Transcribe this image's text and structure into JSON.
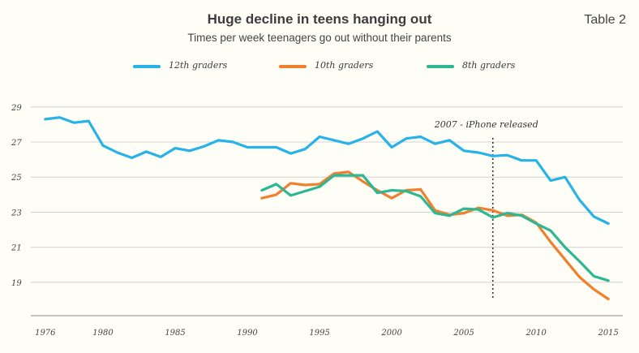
{
  "table_label": "Table 2",
  "chart_data": {
    "type": "line",
    "title": "Huge decline in teens hanging out",
    "subtitle": "Times per week teenagers go out without their parents",
    "xlabel": "",
    "ylabel": "",
    "xlim": [
      1975,
      2016
    ],
    "ylim": [
      17.1,
      30.1
    ],
    "x_ticks": [
      1976,
      1980,
      1985,
      1990,
      1995,
      2000,
      2005,
      2010,
      2015
    ],
    "y_ticks": [
      19,
      21,
      23,
      25,
      27,
      29
    ],
    "x_tick_labels": [
      "1976",
      "1980",
      "1985",
      "1990",
      "1995",
      "2000",
      "2005",
      "2010",
      "2015"
    ],
    "y_tick_labels": [
      "19",
      "21",
      "23",
      "25",
      "27",
      "29"
    ],
    "grid": "horizontal",
    "legend_position": "top",
    "annotation": {
      "x": 2007,
      "label": "2007 - iPhone released"
    },
    "series": [
      {
        "name": "12th graders",
        "color": "#27b2e8",
        "points": [
          [
            1976,
            28.3
          ],
          [
            1977,
            28.4
          ],
          [
            1978,
            28.1
          ],
          [
            1979,
            28.2
          ],
          [
            1980,
            26.8
          ],
          [
            1981,
            26.4
          ],
          [
            1982,
            26.1
          ],
          [
            1983,
            26.45
          ],
          [
            1984,
            26.15
          ],
          [
            1985,
            26.65
          ],
          [
            1986,
            26.5
          ],
          [
            1987,
            26.75
          ],
          [
            1988,
            27.1
          ],
          [
            1989,
            27.0
          ],
          [
            1990,
            26.7
          ],
          [
            1991,
            26.7
          ],
          [
            1992,
            26.7
          ],
          [
            1993,
            26.35
          ],
          [
            1994,
            26.6
          ],
          [
            1995,
            27.3
          ],
          [
            1996,
            27.1
          ],
          [
            1997,
            26.9
          ],
          [
            1998,
            27.2
          ],
          [
            1999,
            27.6
          ],
          [
            2000,
            26.7
          ],
          [
            2001,
            27.2
          ],
          [
            2002,
            27.3
          ],
          [
            2003,
            26.9
          ],
          [
            2004,
            27.1
          ],
          [
            2005,
            26.5
          ],
          [
            2006,
            26.4
          ],
          [
            2007,
            26.2
          ],
          [
            2008,
            26.25
          ],
          [
            2009,
            25.95
          ],
          [
            2010,
            25.95
          ],
          [
            2011,
            24.8
          ],
          [
            2012,
            25.0
          ],
          [
            2013,
            23.7
          ],
          [
            2014,
            22.75
          ],
          [
            2015,
            22.35
          ]
        ]
      },
      {
        "name": "10th graders",
        "color": "#f07f2e",
        "points": [
          [
            1991,
            23.8
          ],
          [
            1992,
            24.0
          ],
          [
            1993,
            24.65
          ],
          [
            1994,
            24.55
          ],
          [
            1995,
            24.6
          ],
          [
            1996,
            25.2
          ],
          [
            1997,
            25.3
          ],
          [
            1998,
            24.75
          ],
          [
            1999,
            24.25
          ],
          [
            2000,
            23.8
          ],
          [
            2001,
            24.25
          ],
          [
            2002,
            24.3
          ],
          [
            2003,
            23.1
          ],
          [
            2004,
            22.85
          ],
          [
            2005,
            22.95
          ],
          [
            2006,
            23.25
          ],
          [
            2007,
            23.1
          ],
          [
            2008,
            22.8
          ],
          [
            2009,
            22.85
          ],
          [
            2010,
            22.4
          ],
          [
            2011,
            21.3
          ],
          [
            2012,
            20.3
          ],
          [
            2013,
            19.3
          ],
          [
            2014,
            18.6
          ],
          [
            2015,
            18.05
          ]
        ]
      },
      {
        "name": "8th graders",
        "color": "#2db893",
        "points": [
          [
            1991,
            24.25
          ],
          [
            1992,
            24.6
          ],
          [
            1993,
            23.95
          ],
          [
            1994,
            24.2
          ],
          [
            1995,
            24.45
          ],
          [
            1996,
            25.1
          ],
          [
            1997,
            25.1
          ],
          [
            1998,
            25.1
          ],
          [
            1999,
            24.1
          ],
          [
            2000,
            24.25
          ],
          [
            2001,
            24.2
          ],
          [
            2002,
            23.9
          ],
          [
            2003,
            22.95
          ],
          [
            2004,
            22.8
          ],
          [
            2005,
            23.2
          ],
          [
            2006,
            23.15
          ],
          [
            2007,
            22.7
          ],
          [
            2008,
            22.95
          ],
          [
            2009,
            22.8
          ],
          [
            2010,
            22.35
          ],
          [
            2011,
            21.95
          ],
          [
            2012,
            21.0
          ],
          [
            2013,
            20.2
          ],
          [
            2014,
            19.35
          ],
          [
            2015,
            19.1
          ]
        ]
      }
    ]
  }
}
